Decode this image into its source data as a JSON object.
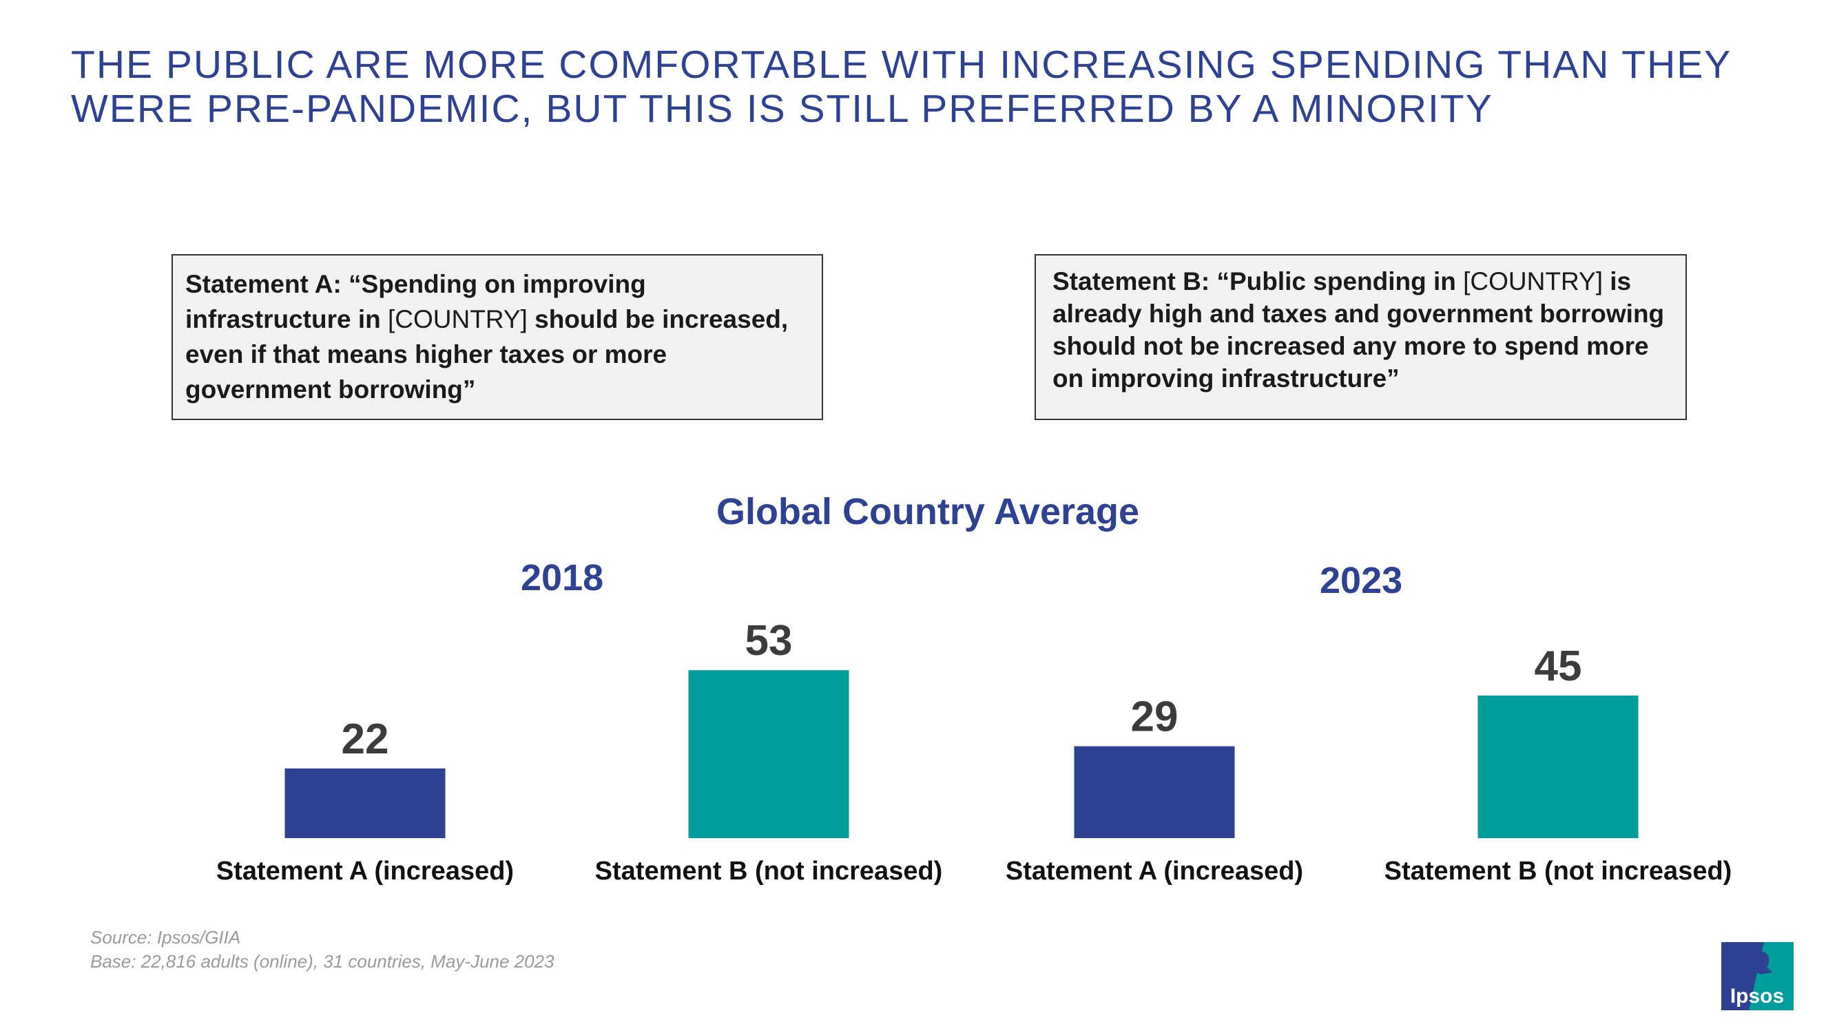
{
  "title": "THE PUBLIC ARE MORE COMFORTABLE WITH INCREASING SPENDING THAN THEY WERE PRE-PANDEMIC, BUT THIS IS STILL PREFERRED BY A MINORITY",
  "statement_a": {
    "prefix": "Statement A: “Spending on improving infrastructure in ",
    "country": "[COUNTRY]",
    "suffix": " should be increased, even if that means higher taxes or more government borrowing”"
  },
  "statement_b": {
    "prefix": "Statement B: “Public spending in ",
    "country": "[COUNTRY]",
    "suffix": " is already high and taxes and government borrowing should not be increased any more to spend more on improving infrastructure”"
  },
  "footer": {
    "source": "Source: Ipsos/GIIA",
    "base": "Base: 22,816 adults (online), 31 countries, May-June 2023"
  },
  "logo": {
    "text": "Ipsos"
  },
  "colors": {
    "title": "#2E4193",
    "statement_a": "#2E4193",
    "statement_b": "#009E9A"
  },
  "chart_data": {
    "type": "bar",
    "title": "Global Country Average",
    "groups": [
      {
        "label": "2018",
        "bars": [
          {
            "category": "Statement A (increased)",
            "value": 22,
            "color": "#2E4193"
          },
          {
            "category": "Statement B (not increased)",
            "value": 53,
            "color": "#009E9A"
          }
        ]
      },
      {
        "label": "2023",
        "bars": [
          {
            "category": "Statement A (increased)",
            "value": 29,
            "color": "#2E4193"
          },
          {
            "category": "Statement B (not increased)",
            "value": 45,
            "color": "#009E9A"
          }
        ]
      }
    ],
    "ylim": [
      0,
      53
    ],
    "grid": false,
    "legend": "none"
  }
}
